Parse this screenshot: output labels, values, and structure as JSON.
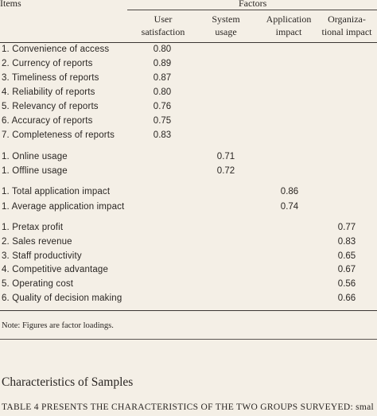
{
  "table": {
    "header": {
      "items_label": "Items",
      "factors_label": "Factors",
      "columns": [
        {
          "line1": "User",
          "line2": "satisfaction"
        },
        {
          "line1": "System",
          "line2": "usage"
        },
        {
          "line1": "Application",
          "line2": "impact"
        },
        {
          "line1": "Organiza-",
          "line2": "tional impact"
        }
      ]
    },
    "groups": [
      {
        "rows": [
          {
            "label": "1. Convenience of access",
            "values": [
              "0.80",
              "",
              "",
              ""
            ]
          },
          {
            "label": "2. Currency of reports",
            "values": [
              "0.89",
              "",
              "",
              ""
            ]
          },
          {
            "label": "3. Timeliness of reports",
            "values": [
              "0.87",
              "",
              "",
              ""
            ]
          },
          {
            "label": "4. Reliability of reports",
            "values": [
              "0.80",
              "",
              "",
              ""
            ]
          },
          {
            "label": "5. Relevancy of reports",
            "values": [
              "0.76",
              "",
              "",
              ""
            ]
          },
          {
            "label": "6. Accuracy of reports",
            "values": [
              "0.75",
              "",
              "",
              ""
            ]
          },
          {
            "label": "7. Completeness of reports",
            "values": [
              "0.83",
              "",
              "",
              ""
            ]
          }
        ]
      },
      {
        "rows": [
          {
            "label": "1. Online usage",
            "values": [
              "",
              "0.71",
              "",
              ""
            ]
          },
          {
            "label": "1. Offline usage",
            "values": [
              "",
              "0.72",
              "",
              ""
            ]
          }
        ]
      },
      {
        "rows": [
          {
            "label": "1. Total application impact",
            "values": [
              "",
              "",
              "0.86",
              ""
            ]
          },
          {
            "label": "1. Average application impact",
            "values": [
              "",
              "",
              "0.74",
              ""
            ]
          }
        ]
      },
      {
        "rows": [
          {
            "label": "1. Pretax profit",
            "values": [
              "",
              "",
              "",
              "0.77"
            ]
          },
          {
            "label": "2. Sales revenue",
            "values": [
              "",
              "",
              "",
              "0.83"
            ]
          },
          {
            "label": "3. Staff productivity",
            "values": [
              "",
              "",
              "",
              "0.65"
            ]
          },
          {
            "label": "4. Competitive advantage",
            "values": [
              "",
              "",
              "",
              "0.67"
            ]
          },
          {
            "label": "5. Operating cost",
            "values": [
              "",
              "",
              "",
              "0.56"
            ]
          },
          {
            "label": "6. Quality of decision making",
            "values": [
              "",
              "",
              "",
              "0.66"
            ]
          }
        ]
      }
    ],
    "note": "Note: Figures are factor loadings."
  },
  "section": {
    "heading": "Characteristics of Samples",
    "first_line": "TABLE 4 PRESENTS THE CHARACTERISTICS OF THE TWO GROUPS SURVEYED: smal"
  }
}
